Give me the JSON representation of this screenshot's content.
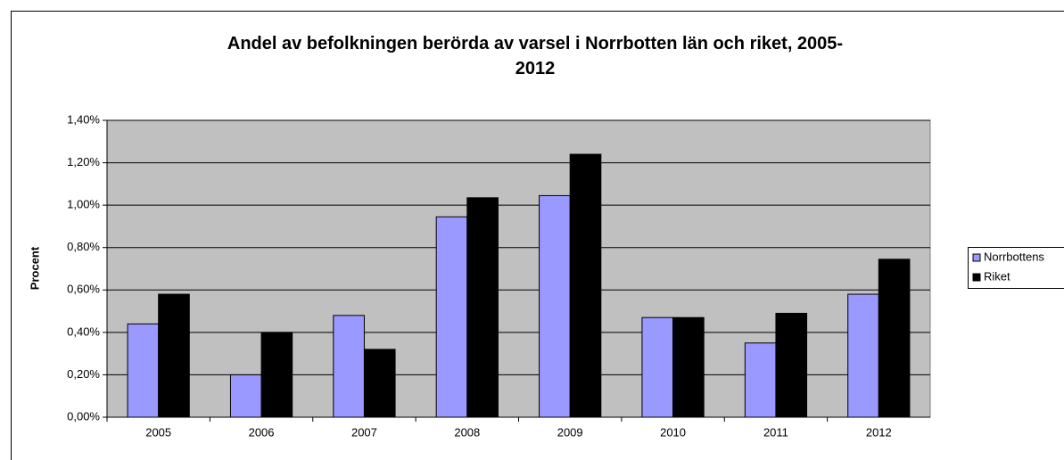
{
  "chart_data": {
    "type": "bar",
    "title": "Andel av befolkningen berörda av varsel i Norrbotten län och riket, 2005-2012",
    "y_label": "Procent",
    "categories": [
      "2005",
      "2006",
      "2007",
      "2008",
      "2009",
      "2010",
      "2011",
      "2012"
    ],
    "series": [
      {
        "name": "Norrbottens",
        "color": "#9999ff",
        "values": [
          0.44,
          0.2,
          0.48,
          0.945,
          1.045,
          0.47,
          0.35,
          0.58
        ]
      },
      {
        "name": "Riket",
        "color": "#000000",
        "values": [
          0.58,
          0.4,
          0.32,
          1.035,
          1.24,
          0.47,
          0.49,
          0.745
        ]
      }
    ],
    "ylim": [
      0,
      1.4
    ],
    "yticks": [
      {
        "value": 0,
        "label": "0,00%"
      },
      {
        "value": 0.2,
        "label": "0,20%"
      },
      {
        "value": 0.4,
        "label": "0,40%"
      },
      {
        "value": 0.6,
        "label": "0,60%"
      },
      {
        "value": 0.8,
        "label": "0,80%"
      },
      {
        "value": 1.0,
        "label": "1,00%"
      },
      {
        "value": 1.2,
        "label": "1,20%"
      },
      {
        "value": 1.4,
        "label": "1,40%"
      }
    ],
    "grid": true,
    "legend": "right"
  }
}
